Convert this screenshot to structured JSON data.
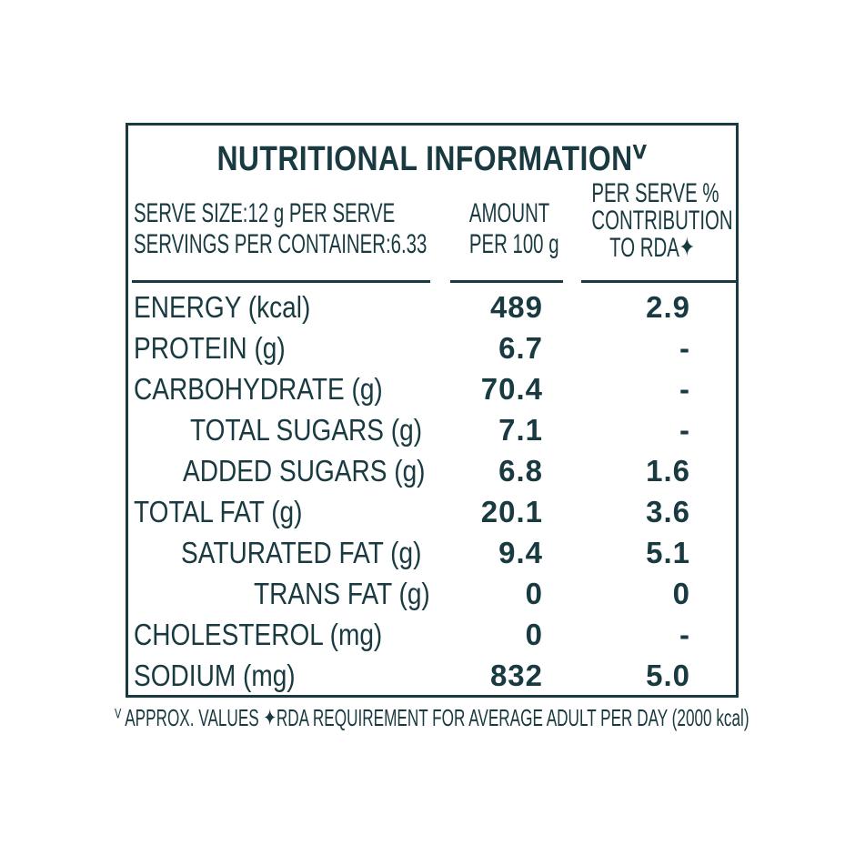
{
  "title": "NUTRITIONAL INFORMATIONⱽ",
  "header": {
    "left_line1": "SERVE SIZE:12 g  PER SERVE",
    "left_line2": "SERVINGS PER CONTAINER:6.33",
    "mid_line1": "AMOUNT",
    "mid_line2": "PER 100 g",
    "right_line1": "PER SERVE %",
    "right_line2": "CONTRIBUTION",
    "right_line3": "TO RDA✦"
  },
  "rows": [
    {
      "name": "ENERGY (kcal)",
      "amount": "489",
      "rda": "2.9"
    },
    {
      "name": "PROTEIN (g)",
      "amount": "6.7",
      "rda": "-"
    },
    {
      "name": "CARBOHYDRATE (g)",
      "amount": "70.4",
      "rda": "-"
    },
    {
      "name": "TOTAL SUGARS (g)",
      "amount": "7.1",
      "rda": "-"
    },
    {
      "name": "ADDED SUGARS (g)",
      "amount": "6.8",
      "rda": "1.6"
    },
    {
      "name": "TOTAL FAT (g)",
      "amount": "20.1",
      "rda": "3.6"
    },
    {
      "name": "SATURATED FAT (g)",
      "amount": "9.4",
      "rda": "5.1"
    },
    {
      "name": "TRANS FAT (g)",
      "amount": "0",
      "rda": "0"
    },
    {
      "name": "CHOLESTEROL (mg)",
      "amount": "0",
      "rda": "-"
    },
    {
      "name": "SODIUM (mg)",
      "amount": "832",
      "rda": "5.0"
    }
  ],
  "footer": "ⱽ APPROX. VALUES  ✦RDA REQUIREMENT FOR AVERAGE ADULT PER DAY (2000 kcal)"
}
